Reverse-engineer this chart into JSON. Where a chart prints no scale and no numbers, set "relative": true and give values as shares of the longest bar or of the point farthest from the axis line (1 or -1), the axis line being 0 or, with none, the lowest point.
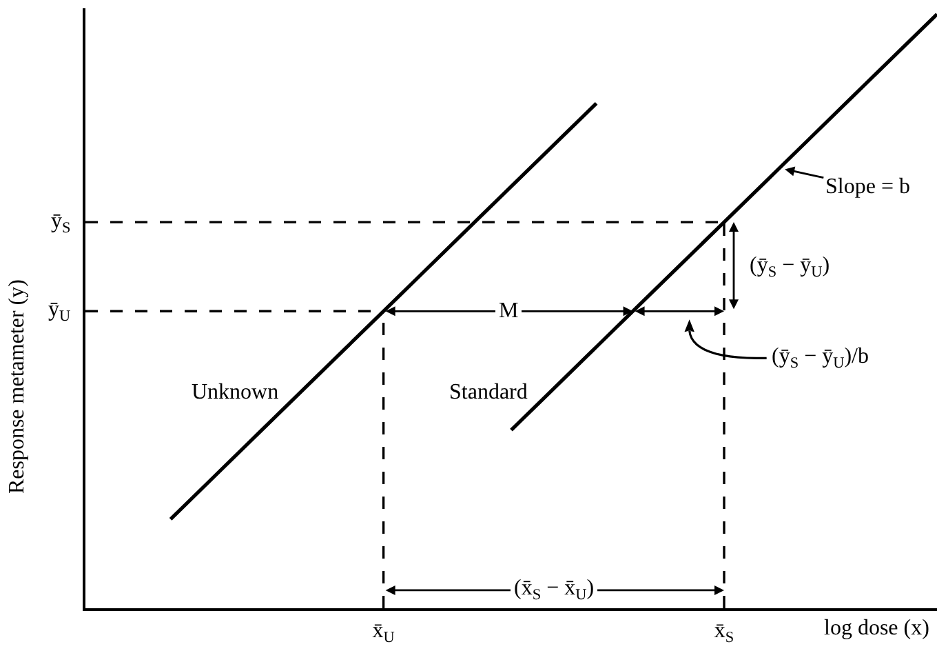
{
  "chart_data": {
    "type": "line",
    "relative": true,
    "xlabel": "log dose (x)",
    "ylabel": "Response metameter (y)",
    "categories": [
      null,
      null,
      null,
      null,
      null,
      null,
      null,
      "x̄$_{U}$",
      null,
      null,
      null,
      null,
      null,
      null,
      null,
      "x̄$_{S}$",
      null,
      null,
      null,
      null,
      null
    ],
    "series": [
      {
        "name": "Unknown",
        "color": "#000000",
        "values": [
          null,
          null,
          0.15,
          0.22,
          0.29,
          0.36,
          0.43,
          0.5,
          0.57,
          0.64,
          0.71,
          0.78,
          0.85,
          null,
          null,
          null,
          null,
          null,
          null,
          null,
          null
        ]
      },
      {
        "name": "Standard",
        "color": "#000000",
        "values": [
          null,
          null,
          null,
          null,
          null,
          null,
          null,
          null,
          null,
          null,
          0.3,
          0.37,
          0.44,
          0.51,
          0.58,
          0.65,
          0.72,
          0.79,
          0.86,
          0.93,
          1
        ]
      }
    ],
    "ref_lines": [
      {
        "axis": "y",
        "value": 0.5,
        "label": "ȳ$_{U}$",
        "line_style": "dashed"
      },
      {
        "axis": "y",
        "value": 0.65,
        "label": "ȳ$_{S}$",
        "line_style": "dashed"
      },
      {
        "axis": "x",
        "value": "x̄$_{U}$",
        "line_style": "dashed"
      },
      {
        "axis": "x",
        "value": "x̄$_{S}$",
        "line_style": "dashed"
      }
    ],
    "annotations": [
      "M",
      "(ȳ$_{S}$ − ȳ$_{U}$)/b",
      "(ȳ$_{S}$ − ȳ$_{U}$)",
      "Slope = b",
      "(x̄$_{S}$ − x̄$_{U}$)"
    ]
  }
}
